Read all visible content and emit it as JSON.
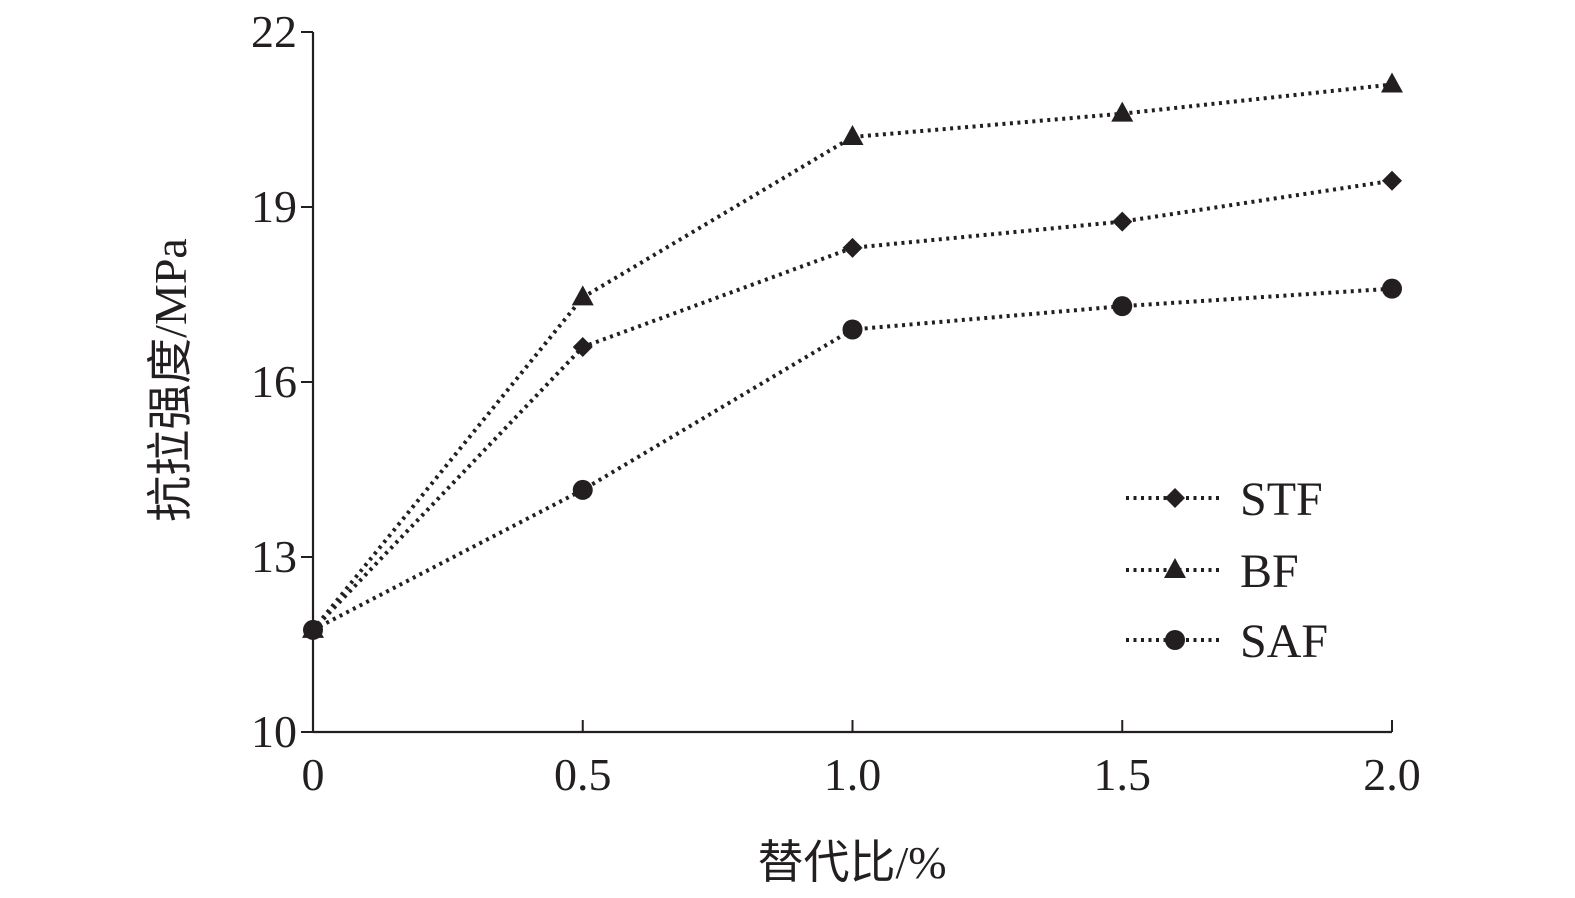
{
  "chart_data": {
    "type": "line",
    "title": "",
    "xlabel": "替代比/%",
    "ylabel": "抗拉强度/MPa",
    "x": [
      0,
      0.5,
      1.0,
      1.5,
      2.0
    ],
    "x_tick_labels": [
      "0",
      "0.5",
      "1.0",
      "1.5",
      "2.0"
    ],
    "y_ticks": [
      10,
      13,
      16,
      19,
      22
    ],
    "y_tick_labels": [
      "10",
      "13",
      "16",
      "19",
      "22"
    ],
    "xlim": [
      0,
      2.0
    ],
    "ylim": [
      10,
      22
    ],
    "grid": false,
    "legend_position": "bottom-right",
    "series": [
      {
        "name": "STF",
        "marker": "diamond-icon",
        "values": [
          11.75,
          16.6,
          18.3,
          18.75,
          19.45
        ]
      },
      {
        "name": "BF",
        "marker": "triangle-icon",
        "values": [
          11.75,
          17.45,
          20.2,
          20.6,
          21.1
        ]
      },
      {
        "name": "SAF",
        "marker": "circle-icon",
        "values": [
          11.75,
          14.15,
          16.9,
          17.3,
          17.6
        ]
      }
    ],
    "colors": {
      "ink": "#231f20",
      "background": "#ffffff"
    }
  }
}
